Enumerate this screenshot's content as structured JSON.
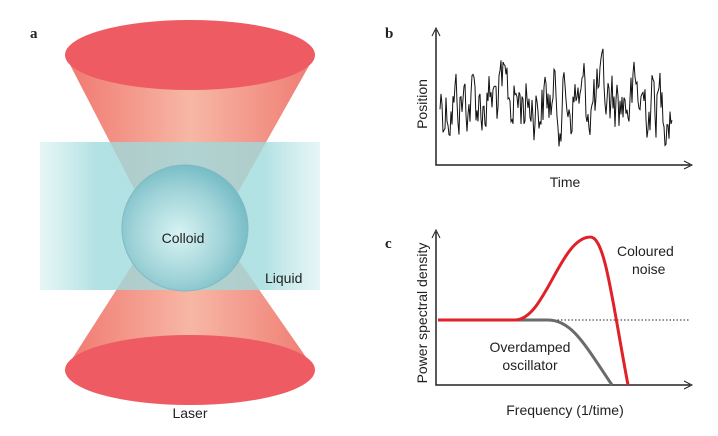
{
  "panel_a": {
    "label": "a",
    "colloid": "Colloid",
    "liquid": "Liquid",
    "laser": "Laser"
  },
  "panel_b": {
    "label": "b",
    "y_label": "Position",
    "x_label": "Time"
  },
  "panel_c": {
    "label": "c",
    "y_label": "Power spectral density",
    "x_label": "Frequency (1/time)",
    "coloured_noise": [
      "Coloured",
      "noise"
    ],
    "overdamped": [
      "Overdamped",
      "oscillator"
    ]
  }
}
